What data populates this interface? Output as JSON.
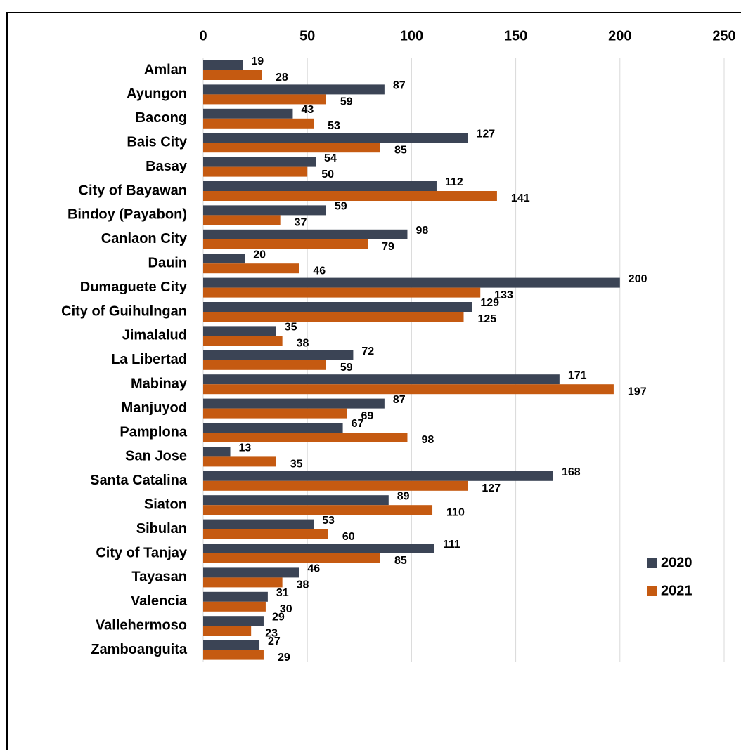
{
  "chart_data": {
    "type": "bar",
    "orientation": "horizontal",
    "categories": [
      "Amlan",
      "Ayungon",
      "Bacong",
      "Bais City",
      "Basay",
      "City of Bayawan",
      "Bindoy (Payabon)",
      "Canlaon City",
      "Dauin",
      "Dumaguete City",
      "City of Guihulngan",
      "Jimalalud",
      "La Libertad",
      "Mabinay",
      "Manjuyod",
      "Pamplona",
      "San Jose",
      "Santa Catalina",
      "Siaton",
      "Sibulan",
      "City of Tanjay",
      "Tayasan",
      "Valencia",
      "Vallehermoso",
      "Zamboanguita"
    ],
    "series": [
      {
        "name": "2020",
        "color": "#3b4455",
        "values": [
          19,
          87,
          43,
          127,
          54,
          112,
          59,
          98,
          20,
          200,
          129,
          35,
          72,
          171,
          87,
          67,
          13,
          168,
          89,
          53,
          111,
          46,
          31,
          29,
          27
        ]
      },
      {
        "name": "2021",
        "color": "#c55a11",
        "values": [
          28,
          59,
          53,
          85,
          50,
          141,
          37,
          79,
          46,
          133,
          125,
          38,
          59,
          197,
          69,
          98,
          35,
          127,
          110,
          60,
          85,
          38,
          30,
          23,
          29
        ]
      }
    ],
    "xlim": [
      0,
      250
    ],
    "xticks": [
      0,
      50,
      100,
      150,
      200,
      250
    ],
    "grid": true,
    "legend": "right"
  }
}
